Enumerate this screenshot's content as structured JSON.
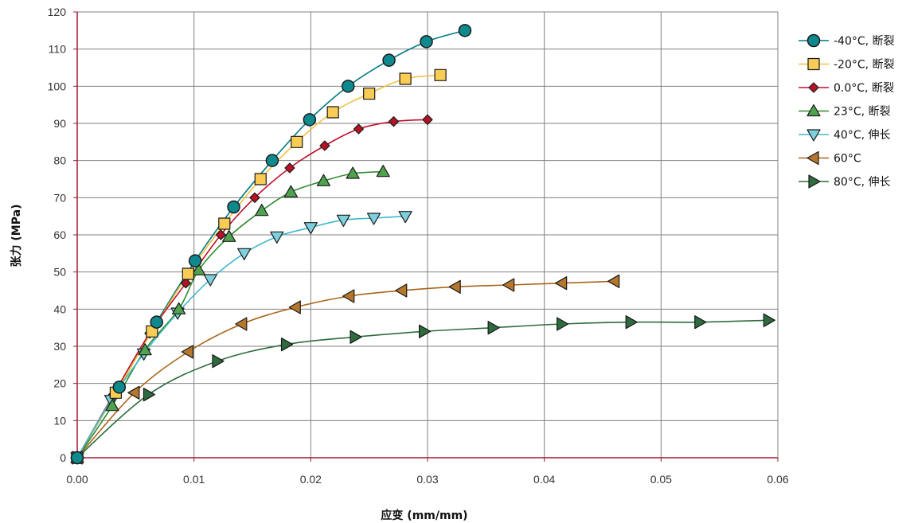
{
  "chart_data": {
    "type": "line",
    "xlabel": "应变 (mm/mm)",
    "ylabel": "张力 (MPa)",
    "xlim": [
      0,
      0.06
    ],
    "ylim": [
      0,
      120
    ],
    "xticks": [
      0,
      0.01,
      0.02,
      0.03,
      0.04,
      0.05,
      0.06
    ],
    "xtick_labels": [
      "0.00",
      "0.01",
      "0.02",
      "0.03",
      "0.04",
      "0.05",
      "0.06"
    ],
    "yticks": [
      0,
      10,
      20,
      30,
      40,
      50,
      60,
      70,
      80,
      90,
      100,
      110,
      120
    ],
    "ytick_labels": [
      "0",
      "10",
      "20",
      "30",
      "40",
      "50",
      "60",
      "70",
      "80",
      "90",
      "100",
      "110",
      "120"
    ],
    "grid": true,
    "legend_position": "right",
    "series": [
      {
        "name": "-40°C, 断裂",
        "marker": "circle",
        "line_color": "#007a80",
        "fill_color": "#0e8a8f",
        "x": [
          0,
          0.0036,
          0.0068,
          0.0101,
          0.0134,
          0.0167,
          0.0199,
          0.0232,
          0.0267,
          0.0299,
          0.0332
        ],
        "y": [
          0,
          19,
          36.5,
          53,
          67.5,
          80,
          91,
          100,
          107,
          112,
          115
        ]
      },
      {
        "name": "-20°C, 断裂",
        "marker": "square",
        "line_color": "#f0c040",
        "fill_color": "#f8cc55",
        "x": [
          0,
          0.0033,
          0.0064,
          0.0095,
          0.0126,
          0.0157,
          0.0188,
          0.0219,
          0.025,
          0.0281,
          0.0311
        ],
        "y": [
          0,
          17.5,
          34,
          49.5,
          63,
          75,
          85,
          93,
          98,
          102,
          103
        ]
      },
      {
        "name": "0.0°C, 断裂",
        "marker": "diamond",
        "line_color": "#c0102a",
        "fill_color": "#b51325",
        "x": [
          0,
          0.0031,
          0.0062,
          0.0093,
          0.0123,
          0.0152,
          0.0182,
          0.0212,
          0.0241,
          0.0271,
          0.03
        ],
        "y": [
          0,
          17,
          33.5,
          47,
          60,
          70,
          78,
          84,
          88.5,
          90.5,
          91
        ]
      },
      {
        "name": "23°C, 断裂",
        "marker": "triangle-up",
        "line_color": "#2e8b2e",
        "fill_color": "#4fa34f",
        "x": [
          0,
          0.003,
          0.0058,
          0.0087,
          0.0104,
          0.013,
          0.0158,
          0.0183,
          0.0211,
          0.0236,
          0.0262
        ],
        "y": [
          0,
          14,
          29,
          40,
          50.5,
          59.5,
          66.5,
          71.5,
          74.5,
          76.5,
          77
        ]
      },
      {
        "name": "40°C, 伸长",
        "marker": "triangle-down",
        "line_color": "#40b8c8",
        "fill_color": "#7fd0de",
        "x": [
          0,
          0.0029,
          0.0057,
          0.0086,
          0.0114,
          0.0143,
          0.0171,
          0.02,
          0.0228,
          0.0254,
          0.0281
        ],
        "y": [
          0,
          15.5,
          28,
          39,
          48,
          55,
          59.5,
          62,
          64,
          64.5,
          65
        ]
      },
      {
        "name": "60°C",
        "marker": "triangle-left",
        "line_color": "#a9661a",
        "fill_color": "#b5772d",
        "x": [
          0,
          0.0049,
          0.0095,
          0.0141,
          0.0187,
          0.0233,
          0.0278,
          0.0324,
          0.037,
          0.0415,
          0.046
        ],
        "y": [
          0,
          17.5,
          28.5,
          36,
          40.5,
          43.5,
          45,
          46,
          46.5,
          47,
          47.5
        ]
      },
      {
        "name": "80°C, 伸长",
        "marker": "triangle-right",
        "line_color": "#2e6b3e",
        "fill_color": "#2e6b3e",
        "x": [
          0,
          0.0061,
          0.012,
          0.0179,
          0.0238,
          0.0297,
          0.0356,
          0.0415,
          0.0474,
          0.0533,
          0.0592
        ],
        "y": [
          0,
          17,
          26,
          30.5,
          32.5,
          34,
          35,
          36,
          36.5,
          36.5,
          37
        ]
      }
    ]
  }
}
